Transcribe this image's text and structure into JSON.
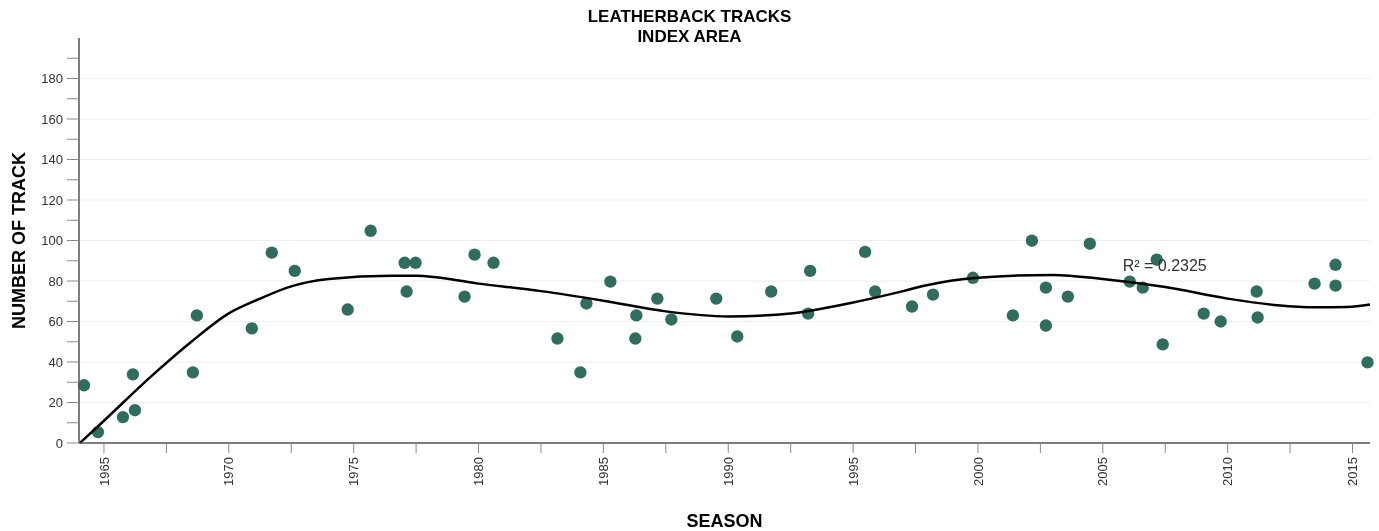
{
  "chart_data": {
    "type": "scatter",
    "title": "LEATHERBACK TRACKS",
    "subtitle": "INDEX AREA",
    "xlabel": "SEASON",
    "ylabel": "NUMBER OF TRACK",
    "xlim": [
      1964,
      2015.7
    ],
    "ylim": [
      0,
      200
    ],
    "xticks": [
      1965,
      {
        "value": 1967.5,
        "label": null
      },
      1970,
      {
        "value": 1972.5,
        "label": null
      },
      1975,
      {
        "value": 1977.5,
        "label": null
      },
      1980,
      {
        "value": 1982.5,
        "label": null
      },
      1985,
      {
        "value": 1987.5,
        "label": null
      },
      1990,
      {
        "value": 1992.5,
        "label": null
      },
      1995,
      {
        "value": 1997.5,
        "label": null
      },
      2000,
      {
        "value": 2002.5,
        "label": null
      },
      2005,
      {
        "value": 2007.5,
        "label": null
      },
      2010,
      {
        "value": 2012.5,
        "label": null
      },
      2015
    ],
    "yticks": [
      0,
      {
        "value": 10,
        "label": null
      },
      20,
      {
        "value": 30,
        "label": null
      },
      40,
      {
        "value": 50,
        "label": null
      },
      60,
      {
        "value": 70,
        "label": null
      },
      80,
      {
        "value": 90,
        "label": null
      },
      100,
      {
        "value": 110,
        "label": null
      },
      120,
      {
        "value": 130,
        "label": null
      },
      140,
      {
        "value": 150,
        "label": null
      },
      160,
      {
        "value": 170,
        "label": null
      },
      180,
      {
        "value": 190,
        "label": null
      }
    ],
    "grid": "y",
    "marker": "circle",
    "annotations": [
      "R² = 0.2325"
    ],
    "series": [
      {
        "color": "#2e6e5e",
        "x": [
          1964.2,
          1964.76,
          1965.76,
          1966.16,
          1966.24,
          1968.56,
          1968.72,
          1970.92,
          1971.72,
          1972.64,
          1974.76,
          1975.68,
          1977.04,
          1977.12,
          1977.48,
          1979.44,
          1979.84,
          1980.6,
          1983.16,
          1984.08,
          1984.32,
          1985.28,
          1986.32,
          1986.28,
          1987.16,
          1987.72,
          1989.52,
          1990.36,
          1991.72,
          1993.2,
          1993.28,
          1995.48,
          1995.88,
          1997.36,
          1998.2,
          1999.8,
          2001.4,
          2002.16,
          2002.72,
          2002.72,
          2003.6,
          2004.48,
          2006.08,
          2006.6,
          2007.16,
          2007.4,
          2009.04,
          2009.72,
          2011.16,
          2011.2,
          2013.48,
          2014.32,
          2014.32,
          2015.6
        ],
        "values": [
          28.5,
          5.4,
          12.8,
          33.9,
          16.2,
          34.9,
          63,
          56.6,
          94,
          85,
          65.9,
          104.8,
          89,
          74.8,
          89,
          72.3,
          93,
          89,
          51.6,
          34.9,
          68.9,
          79.7,
          63,
          51.6,
          71.3,
          61,
          71.3,
          52.6,
          74.8,
          63.9,
          85,
          94.4,
          74.8,
          67.4,
          73.3,
          81.6,
          63,
          99.9,
          76.7,
          58,
          72.3,
          98.4,
          79.7,
          76.7,
          90.5,
          48.7,
          63.9,
          60,
          74.8,
          62,
          78.7,
          88,
          77.7,
          39.8
        ]
      },
      {
        "type": "line",
        "color": "#000000",
        "marker": "none",
        "x": [
          1964.04,
          1965,
          1966.9,
          1968.5,
          1970,
          1971.2,
          1972.4,
          1974,
          1976.5,
          1977.5,
          1980,
          1982.5,
          1985,
          1987.5,
          1990,
          1992.5,
          1995,
          1997,
          1997.8,
          2000,
          2003,
          2005,
          2007.5,
          2010,
          2012,
          2013.5,
          2014.8,
          2015.7
        ],
        "values": [
          0,
          11,
          33,
          50,
          64,
          71,
          77,
          81,
          82.6,
          82.6,
          78.7,
          75,
          70.3,
          65,
          62.5,
          64,
          69.4,
          75,
          77.5,
          81.6,
          83,
          81,
          77,
          71.3,
          68,
          67,
          67.2,
          68.4
        ]
      }
    ]
  }
}
